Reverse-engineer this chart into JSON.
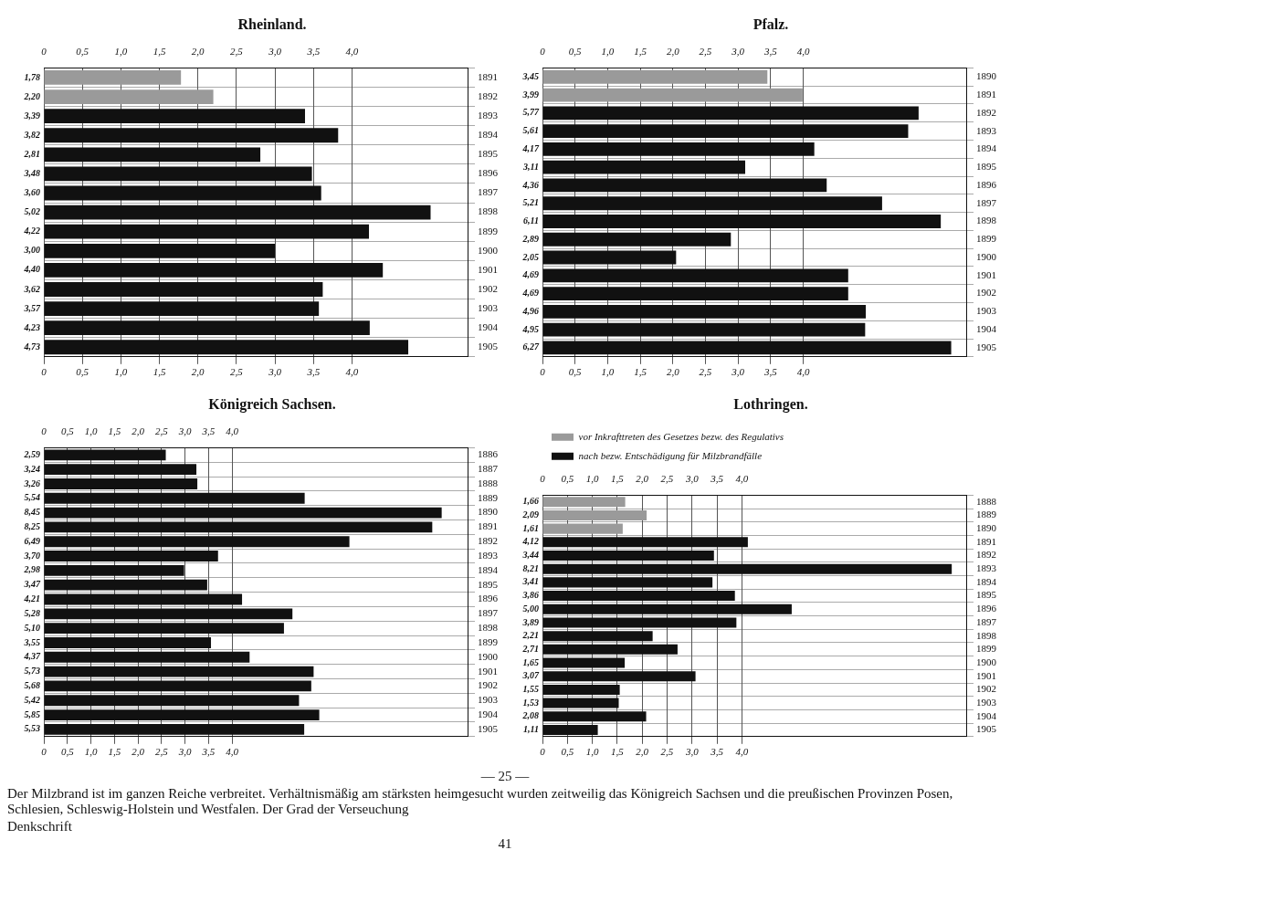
{
  "chart_data": [
    {
      "type": "bar",
      "title": "Rheinland.",
      "orientation": "horizontal",
      "stacked": true,
      "categories": [
        "1891",
        "1892",
        "1893",
        "1894",
        "1895",
        "1896",
        "1897",
        "1898",
        "1899",
        "1900",
        "1901",
        "1902",
        "1903",
        "1904",
        "1905"
      ],
      "series": [
        {
          "color": "#9a9a9a",
          "values": [
            1.78,
            2.2,
            null,
            null,
            null,
            null,
            null,
            null,
            null,
            null,
            null,
            null,
            null,
            null,
            null
          ],
          "value_labels": [
            "1,78",
            "2,20",
            null,
            null,
            null,
            null,
            null,
            null,
            null,
            null,
            null,
            null,
            null,
            null,
            null
          ]
        },
        {
          "color": "#111111",
          "values": [
            null,
            null,
            3.39,
            3.82,
            2.81,
            3.48,
            3.6,
            5.02,
            4.22,
            3.0,
            4.4,
            3.62,
            3.57,
            4.23,
            4.73
          ],
          "value_labels": [
            null,
            null,
            "3,39",
            "3,82",
            "2,81",
            "3,48",
            "3,60",
            "5,02",
            "4,22",
            "3,00",
            "4,40",
            "3,62",
            "3,57",
            "4,23",
            "4,73"
          ]
        }
      ],
      "xlim": [
        0,
        5.5
      ],
      "xticks": [
        {
          "value": 0,
          "label": "0"
        },
        {
          "value": 0.5,
          "label": "0,5"
        },
        {
          "value": 1,
          "label": "1,0"
        },
        {
          "value": 1.5,
          "label": "1,5"
        },
        {
          "value": 2,
          "label": "2,0"
        },
        {
          "value": 2.5,
          "label": "2,5"
        },
        {
          "value": 3,
          "label": "3,0"
        },
        {
          "value": 3.5,
          "label": "3,5"
        },
        {
          "value": 4,
          "label": "4,0"
        }
      ],
      "x2lim": [
        0,
        5.5
      ],
      "x2ticks": [
        {
          "value": 0,
          "label": "0"
        },
        {
          "value": 0.5,
          "label": "0,5"
        },
        {
          "value": 1,
          "label": "1,0"
        },
        {
          "value": 1.5,
          "label": "1,5"
        },
        {
          "value": 2,
          "label": "2,0"
        },
        {
          "value": 2.5,
          "label": "2,5"
        },
        {
          "value": 3,
          "label": "3,0"
        },
        {
          "value": 3.5,
          "label": "3,5"
        },
        {
          "value": 4,
          "label": "4,0"
        }
      ],
      "grid": true
    },
    {
      "type": "bar",
      "title": "Pfalz.",
      "orientation": "horizontal",
      "stacked": true,
      "categories": [
        "1890",
        "1891",
        "1892",
        "1893",
        "1894",
        "1895",
        "1896",
        "1897",
        "1898",
        "1899",
        "1900",
        "1901",
        "1902",
        "1903",
        "1904",
        "1905"
      ],
      "series": [
        {
          "color": "#9a9a9a",
          "values": [
            3.45,
            3.99,
            null,
            null,
            null,
            null,
            null,
            null,
            null,
            null,
            null,
            null,
            null,
            null,
            null,
            null
          ],
          "value_labels": [
            "3,45",
            "3,99",
            null,
            null,
            null,
            null,
            null,
            null,
            null,
            null,
            null,
            null,
            null,
            null,
            null,
            null
          ]
        },
        {
          "color": "#111111",
          "values": [
            null,
            null,
            5.77,
            5.61,
            4.17,
            3.11,
            4.36,
            5.21,
            6.11,
            2.89,
            2.05,
            4.69,
            4.69,
            4.96,
            4.95,
            6.27
          ],
          "value_labels": [
            null,
            null,
            "5,77",
            "5,61",
            "4,17",
            "3,11",
            "4,36",
            "5,21",
            "6,11",
            "2,89",
            "2,05",
            "4,69",
            "4,69",
            "4,96",
            "4,95",
            "6,27"
          ]
        }
      ],
      "xlim": [
        0,
        6.5
      ],
      "xticks": [
        {
          "value": 0,
          "label": "0"
        },
        {
          "value": 0.5,
          "label": "0,5"
        },
        {
          "value": 1,
          "label": "1,0"
        },
        {
          "value": 1.5,
          "label": "1,5"
        },
        {
          "value": 2,
          "label": "2,0"
        },
        {
          "value": 2.5,
          "label": "2,5"
        },
        {
          "value": 3,
          "label": "3,0"
        },
        {
          "value": 3.5,
          "label": "3,5"
        },
        {
          "value": 4,
          "label": "4,0"
        }
      ],
      "x2lim": [
        0,
        6.5
      ],
      "x2ticks": [
        {
          "value": 0,
          "label": "0"
        },
        {
          "value": 0.5,
          "label": "0,5"
        },
        {
          "value": 1,
          "label": "1,0"
        },
        {
          "value": 1.5,
          "label": "1,5"
        },
        {
          "value": 2,
          "label": "2,0"
        },
        {
          "value": 2.5,
          "label": "2,5"
        },
        {
          "value": 3,
          "label": "3,0"
        },
        {
          "value": 3.5,
          "label": "3,5"
        },
        {
          "value": 4,
          "label": "4,0"
        }
      ],
      "grid": true
    },
    {
      "type": "bar",
      "title": "Königreich Sachsen.",
      "orientation": "horizontal",
      "stacked": true,
      "categories": [
        "1886",
        "1887",
        "1888",
        "1889",
        "1890",
        "1891",
        "1892",
        "1893",
        "1894",
        "1895",
        "1896",
        "1897",
        "1898",
        "1899",
        "1900",
        "1901",
        "1902",
        "1903",
        "1904",
        "1905"
      ],
      "series": [
        {
          "color": "#111111",
          "values": [
            2.59,
            3.24,
            3.26,
            5.54,
            8.45,
            8.25,
            6.49,
            3.7,
            2.98,
            3.47,
            4.21,
            5.28,
            5.1,
            3.55,
            4.37,
            5.73,
            5.68,
            5.42,
            5.85,
            5.53
          ],
          "value_labels": [
            "2,59",
            "3,24",
            "3,26",
            "5,54",
            "8,45",
            "8,25",
            "6,49",
            "3,70",
            "2,98",
            "3,47",
            "4,21",
            "5,28",
            "5,10",
            "3,55",
            "4,37",
            "5,73",
            "5,68",
            "5,42",
            "5,85",
            "5,53"
          ]
        }
      ],
      "xlim": [
        0,
        9
      ],
      "xticks": [
        {
          "value": 0,
          "label": "0"
        },
        {
          "value": 0.5,
          "label": "0,5"
        },
        {
          "value": 1,
          "label": "1,0"
        },
        {
          "value": 1.5,
          "label": "1,5"
        },
        {
          "value": 2,
          "label": "2,0"
        },
        {
          "value": 2.5,
          "label": "2,5"
        },
        {
          "value": 3,
          "label": "3,0"
        },
        {
          "value": 3.5,
          "label": "3,5"
        },
        {
          "value": 4,
          "label": "4,0"
        }
      ],
      "x2lim": [
        0,
        9
      ],
      "x2ticks": [
        {
          "value": 0,
          "label": "0"
        },
        {
          "value": 0.5,
          "label": "0,5"
        },
        {
          "value": 1,
          "label": "1,0"
        },
        {
          "value": 1.5,
          "label": "1,5"
        },
        {
          "value": 2,
          "label": "2,0"
        },
        {
          "value": 2.5,
          "label": "2,5"
        },
        {
          "value": 3,
          "label": "3,0"
        },
        {
          "value": 3.5,
          "label": "3,5"
        },
        {
          "value": 4,
          "label": "4,0"
        }
      ],
      "grid": true
    },
    {
      "type": "bar",
      "title": "Lothringen.",
      "orientation": "horizontal",
      "stacked": true,
      "legend": "top",
      "categories": [
        "1888",
        "1889",
        "1890",
        "1891",
        "1892",
        "1893",
        "1894",
        "1895",
        "1896",
        "1897",
        "1898",
        "1899",
        "1900",
        "1901",
        "1902",
        "1903",
        "1904",
        "1905"
      ],
      "series": [
        {
          "name": "vor Inkrafttreten des Gesetzes bezw. des Regulativs",
          "color": "#9a9a9a",
          "values": [
            1.66,
            2.09,
            1.61,
            null,
            null,
            null,
            null,
            null,
            null,
            null,
            null,
            null,
            null,
            null,
            null,
            null,
            null,
            null
          ],
          "value_labels": [
            "1,66",
            "2,09",
            "1,61",
            null,
            null,
            null,
            null,
            null,
            null,
            null,
            null,
            null,
            null,
            null,
            null,
            null,
            null,
            null
          ]
        },
        {
          "name": "nach bezw. Entschädigung für Milzbrandfälle",
          "color": "#111111",
          "values": [
            null,
            null,
            null,
            4.12,
            3.44,
            8.21,
            3.41,
            3.86,
            5.0,
            3.89,
            2.21,
            2.71,
            1.65,
            3.07,
            1.55,
            1.53,
            2.08,
            1.11
          ],
          "value_labels": [
            null,
            null,
            null,
            "4,12",
            "3,44",
            "8,21",
            "3,41",
            "3,86",
            "5,00",
            "3,89",
            "2,21",
            "2,71",
            "1,65",
            "3,07",
            "1,55",
            "1,53",
            "2,08",
            "1,11"
          ]
        }
      ],
      "xlim": [
        0,
        8.5
      ],
      "xticks": [
        {
          "value": 0,
          "label": "0"
        },
        {
          "value": 0.5,
          "label": "0,5"
        },
        {
          "value": 1,
          "label": "1,0"
        },
        {
          "value": 1.5,
          "label": "1,5"
        },
        {
          "value": 2,
          "label": "2,0"
        },
        {
          "value": 2.5,
          "label": "2,5"
        },
        {
          "value": 3,
          "label": "3,0"
        },
        {
          "value": 3.5,
          "label": "3,5"
        },
        {
          "value": 4,
          "label": "4,0"
        }
      ],
      "x2lim": [
        0,
        8.5
      ],
      "x2ticks": [
        {
          "value": 0,
          "label": "0"
        },
        {
          "value": 0.5,
          "label": "0,5"
        },
        {
          "value": 1,
          "label": "1,0"
        },
        {
          "value": 1.5,
          "label": "1,5"
        },
        {
          "value": 2,
          "label": "2,0"
        },
        {
          "value": 2.5,
          "label": "2,5"
        },
        {
          "value": 3,
          "label": "3,0"
        },
        {
          "value": 3.5,
          "label": "3,5"
        },
        {
          "value": 4,
          "label": "4,0"
        }
      ],
      "grid": true
    },
    {
      "type": "other",
      "annotations": [
        "— 25 —",
        "Der Milzbrand ist im ganzen Reiche verbreitet. Verhältnismäßig am stärksten heimgesucht wurden zeitweilig das Königreich Sachsen und die preußischen Provinzen Posen, Schlesien, Schleswig-Holstein und Westfalen. Der Grad der Verseuchung",
        "Denkschrift",
        "41"
      ]
    }
  ]
}
